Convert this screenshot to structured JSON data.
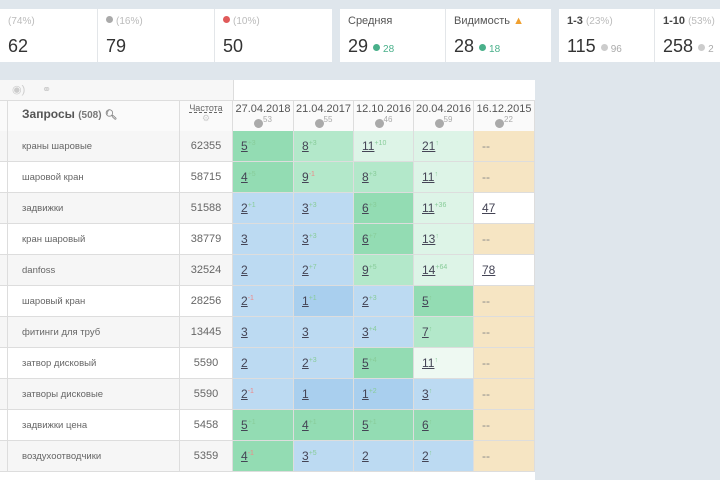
{
  "cards": [
    {
      "pct": "(74%)",
      "value": "62",
      "icon": "green-circle"
    },
    {
      "pct": "(16%)",
      "value": "79",
      "icon": "gray-minus-circle",
      "icon_color": "#aaaaaa"
    },
    {
      "pct": "(10%)",
      "value": "50",
      "icon": "red-minus-circle",
      "icon_color": "#e05a5a"
    },
    {
      "label": "Средняя",
      "value": "29",
      "delta": "28"
    },
    {
      "label": "Видимость",
      "value": "28",
      "delta": "18",
      "icon": "warning-icon"
    },
    {
      "label": "1-3",
      "pct": "(23%)",
      "value": "115",
      "delta": "96"
    },
    {
      "label": "1-10",
      "pct": "(53%)",
      "value": "258",
      "delta": "2"
    }
  ],
  "table": {
    "queries_label": "Запросы",
    "queries_count": "(508)",
    "freq_label": "Частота",
    "dates": [
      {
        "date": "27.04.2018",
        "count": "53"
      },
      {
        "date": "21.04.2017",
        "count": "55"
      },
      {
        "date": "12.10.2016",
        "count": "46"
      },
      {
        "date": "20.04.2016",
        "count": "59"
      },
      {
        "date": "16.12.2015",
        "count": "22"
      }
    ],
    "rows": [
      {
        "q": "краны шаровые",
        "f": "62355",
        "c": [
          [
            "5",
            "+3",
            "dg"
          ],
          [
            "8",
            "+3",
            "mg"
          ],
          [
            "11",
            "+10",
            "lg"
          ],
          [
            "21",
            "↑",
            "lg"
          ],
          [
            "--",
            "",
            "o"
          ]
        ]
      },
      {
        "q": "шаровой кран",
        "f": "58715",
        "c": [
          [
            "4",
            "+5",
            "dg"
          ],
          [
            "9",
            "-1",
            "mg"
          ],
          [
            "8",
            "+3",
            "mg"
          ],
          [
            "11",
            "↑",
            "lg"
          ],
          [
            "--",
            "",
            "o"
          ]
        ]
      },
      {
        "q": "задвижки",
        "f": "51588",
        "c": [
          [
            "2",
            "+1",
            "b"
          ],
          [
            "3",
            "+3",
            "b"
          ],
          [
            "6",
            "+3",
            "dg"
          ],
          [
            "11",
            "+36",
            "lg"
          ],
          [
            "47",
            "",
            "w"
          ]
        ]
      },
      {
        "q": "кран шаровый",
        "f": "38779",
        "c": [
          [
            "3",
            "",
            "b"
          ],
          [
            "3",
            "+3",
            "b"
          ],
          [
            "6",
            "+7",
            "dg"
          ],
          [
            "13",
            "↑",
            "lg"
          ],
          [
            "--",
            "",
            "o"
          ]
        ]
      },
      {
        "q": "danfoss",
        "f": "32524",
        "c": [
          [
            "2",
            "",
            "b"
          ],
          [
            "2",
            "+7",
            "b"
          ],
          [
            "9",
            "+5",
            "mg"
          ],
          [
            "14",
            "+64",
            "lg"
          ],
          [
            "78",
            "",
            "w"
          ]
        ]
      },
      {
        "q": "шаровый кран",
        "f": "28256",
        "c": [
          [
            "2",
            "-1",
            "b"
          ],
          [
            "1",
            "+1",
            "db"
          ],
          [
            "2",
            "+3",
            "b"
          ],
          [
            "5",
            "↑",
            "dg"
          ],
          [
            "--",
            "",
            "o"
          ]
        ]
      },
      {
        "q": "фитинги для труб",
        "f": "13445",
        "c": [
          [
            "3",
            "",
            "b"
          ],
          [
            "3",
            "",
            "b"
          ],
          [
            "3",
            "+4",
            "b"
          ],
          [
            "7",
            "↑",
            "mg"
          ],
          [
            "--",
            "",
            "o"
          ]
        ]
      },
      {
        "q": "затвор дисковый",
        "f": "5590",
        "c": [
          [
            "2",
            "",
            "b"
          ],
          [
            "2",
            "+3",
            "b"
          ],
          [
            "5",
            "+4",
            "dg"
          ],
          [
            "11",
            "↑",
            "vl"
          ],
          [
            "--",
            "",
            "o"
          ]
        ]
      },
      {
        "q": "затворы дисковые",
        "f": "5590",
        "c": [
          [
            "2",
            "-1",
            "b"
          ],
          [
            "1",
            "",
            "db"
          ],
          [
            "1",
            "+2",
            "db"
          ],
          [
            "3",
            "↑",
            "b"
          ],
          [
            "--",
            "",
            "o"
          ]
        ]
      },
      {
        "q": "задвижки цена",
        "f": "5458",
        "c": [
          [
            "5",
            "+1",
            "dg"
          ],
          [
            "4",
            "+1",
            "dg"
          ],
          [
            "5",
            "+1",
            "dg"
          ],
          [
            "6",
            "↑",
            "dg"
          ],
          [
            "--",
            "",
            "o"
          ]
        ]
      },
      {
        "q": "воздухоотводчики",
        "f": "5359",
        "c": [
          [
            "4",
            "-1",
            "dg"
          ],
          [
            "3",
            "+5",
            "b"
          ],
          [
            "2",
            "",
            "b"
          ],
          [
            "2",
            "↑",
            "b"
          ],
          [
            "--",
            "",
            "o"
          ]
        ]
      }
    ]
  }
}
